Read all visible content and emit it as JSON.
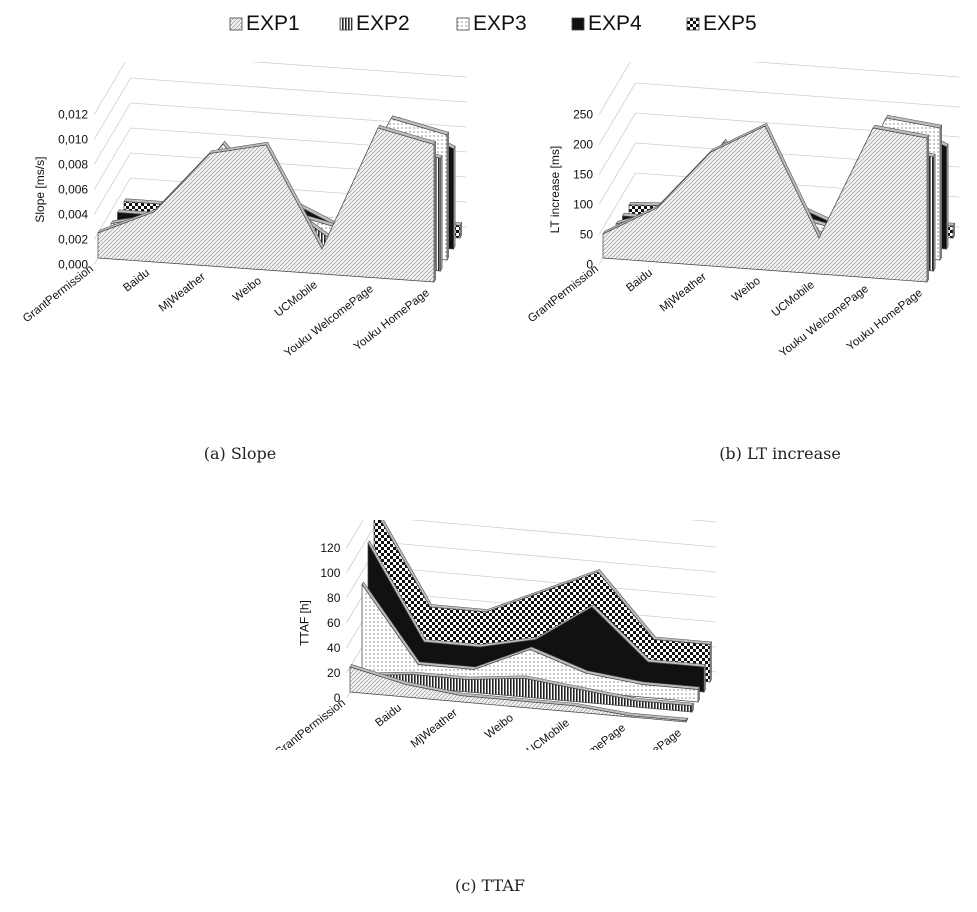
{
  "legend": [
    {
      "name": "EXP1",
      "pattern": "diag"
    },
    {
      "name": "EXP2",
      "pattern": "vlines"
    },
    {
      "name": "EXP3",
      "pattern": "dots"
    },
    {
      "name": "EXP4",
      "pattern": "solid"
    },
    {
      "name": "EXP5",
      "pattern": "checker"
    }
  ],
  "captions": {
    "a": "(a) Slope",
    "b": "(b) LT increase",
    "c": "(c) TTAF"
  },
  "chart_data": [
    {
      "type": "area",
      "subtype": "3d",
      "ylabel": "Slope [ms/s]",
      "yticks": [
        "0,000",
        "0,002",
        "0,004",
        "0,006",
        "0,008",
        "0,010",
        "0,012"
      ],
      "ylim": [
        0,
        0.012
      ],
      "categories": [
        "GrantPermission",
        "Baidu",
        "MjWeather",
        "Weibo",
        "UCMobile",
        "Youku WelcomePage",
        "Youku HomePage"
      ],
      "series": [
        {
          "name": "EXP1",
          "values": [
            0.002,
            0.004,
            0.009,
            0.01,
            0.002,
            0.012,
            0.011
          ]
        },
        {
          "name": "EXP2",
          "values": [
            0.0,
            0.001,
            0.006,
            0.005,
            0.002,
            0.01,
            0.009
          ]
        },
        {
          "name": "EXP3",
          "values": [
            0.001,
            0.002,
            0.008,
            0.003,
            0.002,
            0.011,
            0.01
          ]
        },
        {
          "name": "EXP4",
          "values": [
            0.001,
            0.001,
            0.006,
            0.003,
            0.001,
            0.01,
            0.008
          ]
        },
        {
          "name": "EXP5",
          "values": [
            0.001,
            0.001,
            0.001,
            0.0005,
            0.0002,
            0.001,
            0.001
          ]
        }
      ]
    },
    {
      "type": "area",
      "subtype": "3d",
      "ylabel": "LT increase [ms]",
      "yticks": [
        "0",
        "50",
        "100",
        "150",
        "200",
        "250"
      ],
      "ylim": [
        0,
        250
      ],
      "categories": [
        "GrantPermission",
        "Baidu",
        "MjWeather",
        "Weibo",
        "UCMobile",
        "Youku WelcomePage",
        "Youku HomePage"
      ],
      "series": [
        {
          "name": "EXP1",
          "values": [
            40,
            90,
            190,
            240,
            60,
            250,
            240
          ]
        },
        {
          "name": "EXP2",
          "values": [
            0,
            10,
            120,
            100,
            40,
            200,
            190
          ]
        },
        {
          "name": "EXP3",
          "values": [
            20,
            50,
            170,
            60,
            40,
            230,
            220
          ]
        },
        {
          "name": "EXP4",
          "values": [
            15,
            15,
            130,
            60,
            25,
            210,
            170
          ]
        },
        {
          "name": "EXP5",
          "values": [
            15,
            20,
            20,
            10,
            5,
            20,
            20
          ]
        }
      ]
    },
    {
      "type": "area",
      "subtype": "3d",
      "ylabel": "TTAF [h]",
      "yticks": [
        "0",
        "20",
        "40",
        "60",
        "80",
        "100",
        "120"
      ],
      "ylim": [
        0,
        120
      ],
      "categories": [
        "GrantPermission",
        "Baidu",
        "MjWeather",
        "Weibo",
        "UCMobile",
        "Youku WelcomePage",
        "Youku HomePage"
      ],
      "series": [
        {
          "name": "EXP1",
          "values": [
            20,
            10,
            5,
            5,
            5,
            1,
            1
          ]
        },
        {
          "name": "EXP2",
          "values": [
            5,
            10,
            10,
            15,
            10,
            5,
            5
          ]
        },
        {
          "name": "EXP3",
          "values": [
            70,
            10,
            10,
            30,
            15,
            10,
            10
          ]
        },
        {
          "name": "EXP4",
          "values": [
            95,
            20,
            20,
            30,
            60,
            20,
            20
          ]
        },
        {
          "name": "EXP5",
          "values": [
            115,
            40,
            40,
            60,
            80,
            30,
            30
          ]
        }
      ]
    }
  ]
}
